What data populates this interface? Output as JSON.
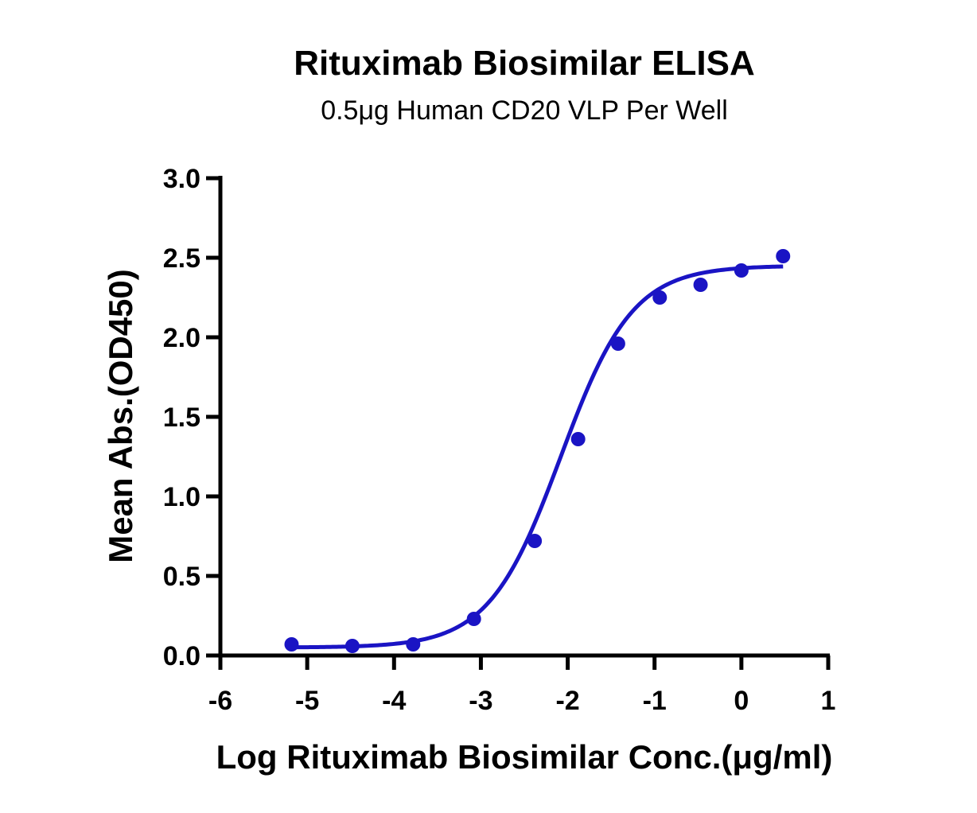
{
  "chart_data": {
    "type": "scatter",
    "title": "Rituximab Biosimilar ELISA",
    "subtitle": "0.5μg Human CD20 VLP Per Well",
    "xlabel": "Log Rituximab Biosimilar Conc.(μg/ml)",
    "ylabel": "Mean Abs.(OD450)",
    "xlim": [
      -6,
      1
    ],
    "ylim": [
      0,
      3
    ],
    "x_ticks": [
      -6,
      -5,
      -4,
      -3,
      -2,
      -1,
      0,
      1
    ],
    "x_tick_labels": [
      "-6",
      "-5",
      "-4",
      "-3",
      "-2",
      "-1",
      "0",
      "1"
    ],
    "y_ticks": [
      0,
      0.5,
      1,
      1.5,
      2,
      2.5,
      3
    ],
    "y_tick_labels": [
      "0.0",
      "0.5",
      "1.0",
      "1.5",
      "2.0",
      "2.5",
      "3.0"
    ],
    "grid": false,
    "series": [
      {
        "color": "#1a14c4",
        "x": [
          -5.18,
          -4.48,
          -3.78,
          -3.08,
          -2.38,
          -1.88,
          -1.42,
          -0.94,
          -0.47,
          0.0,
          0.48
        ],
        "y": [
          0.07,
          0.06,
          0.07,
          0.23,
          0.72,
          1.36,
          1.96,
          2.25,
          2.33,
          2.42,
          2.51
        ]
      }
    ],
    "fit": {
      "model": "4PL",
      "color": "#1a14c4",
      "bottom": 0.05,
      "top": 2.45,
      "log_ec50": -2.08,
      "hill": 1.05,
      "x_range": [
        -5.18,
        0.48
      ]
    }
  }
}
